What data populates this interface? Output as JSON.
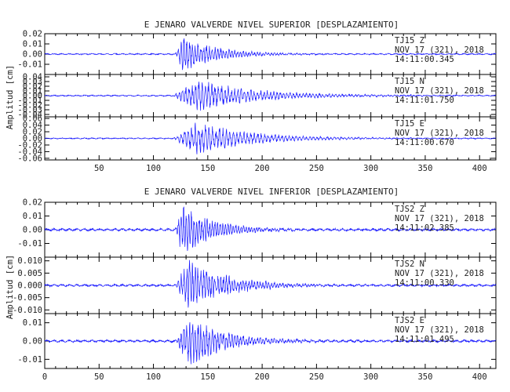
{
  "colors": {
    "trace": "#1a1aff",
    "axis": "#000000"
  },
  "chart_data": [
    {
      "type": "line",
      "title": "E JENARO VALVERDE NIVEL SUPERIOR [DESPLAZAMIENTO]",
      "ylabel": "Amplitud [cm]",
      "x_ticks": [
        "50",
        "100",
        "150",
        "200",
        "250",
        "300",
        "350",
        "400"
      ],
      "xlim": [
        0,
        415
      ],
      "panels": [
        {
          "station": "TJ15",
          "component": "Z",
          "date": "NOV 17 (321), 2018",
          "time": "14:11:00.345",
          "y_ticks": [
            "0.02",
            "0.01",
            "0.00",
            "-0.01"
          ],
          "ylim": [
            -0.02,
            0.02
          ],
          "trace": {
            "onset": 120,
            "peak_time": 128,
            "peak_amp": 0.015,
            "decay": 30,
            "noise": 0.0006,
            "period": 2.6
          }
        },
        {
          "station": "TJ15",
          "component": "N",
          "date": "NOV 17 (321), 2018",
          "time": "14:11:01.750",
          "y_ticks": [
            "0.04",
            "0.03",
            "0.02",
            "0.01",
            "0.00",
            "-0.01",
            "-0.02",
            "-0.03",
            "-0.04"
          ],
          "ylim": [
            -0.045,
            0.045
          ],
          "trace": {
            "onset": 118,
            "peak_time": 140,
            "peak_amp": 0.028,
            "decay": 55,
            "noise": 0.0012,
            "period": 3.0
          }
        },
        {
          "station": "TJ15",
          "component": "E",
          "date": "NOV 17 (321), 2018",
          "time": "14:11:00.670",
          "y_ticks": [
            "0.06",
            "0.04",
            "0.02",
            "0.00",
            "-0.02",
            "-0.04",
            "-0.06"
          ],
          "ylim": [
            -0.065,
            0.065
          ],
          "trace": {
            "onset": 118,
            "peak_time": 140,
            "peak_amp": 0.042,
            "decay": 50,
            "noise": 0.0015,
            "period": 3.2
          }
        }
      ]
    },
    {
      "type": "line",
      "title": "E JENARO VALVERDE NIVEL INFERIOR [DESPLAZAMIENTO]",
      "ylabel": "Amplitud [cm]",
      "x_ticks": [
        "0",
        "50",
        "100",
        "150",
        "200",
        "250",
        "300",
        "350",
        "400"
      ],
      "xlim": [
        0,
        415
      ],
      "panels": [
        {
          "station": "TJS2",
          "component": "Z",
          "date": "NOV 17 (321), 2018",
          "time": "14:11:02.385",
          "y_ticks": [
            "0.02",
            "0.01",
            "0.00",
            "-0.01"
          ],
          "ylim": [
            -0.02,
            0.02
          ],
          "trace": {
            "onset": 120,
            "peak_time": 127,
            "peak_amp": 0.016,
            "decay": 28,
            "noise": 0.0008,
            "period": 2.4
          }
        },
        {
          "station": "TJS2",
          "component": "N",
          "date": "NOV 17 (321), 2018",
          "time": "14:11:00.330",
          "y_ticks": [
            "0.010",
            "0.005",
            "0.000",
            "-0.005",
            "-0.010"
          ],
          "ylim": [
            -0.0115,
            0.0115
          ],
          "trace": {
            "onset": 120,
            "peak_time": 133,
            "peak_amp": 0.009,
            "decay": 35,
            "noise": 0.0004,
            "period": 2.6
          }
        },
        {
          "station": "TJS2",
          "component": "E",
          "date": "NOV 17 (321), 2018",
          "time": "14:11:01.495",
          "y_ticks": [
            "0.01",
            "0.00",
            "-0.01"
          ],
          "ylim": [
            -0.015,
            0.015
          ],
          "trace": {
            "onset": 120,
            "peak_time": 133,
            "peak_amp": 0.012,
            "decay": 32,
            "noise": 0.0006,
            "period": 2.6
          }
        }
      ]
    }
  ]
}
